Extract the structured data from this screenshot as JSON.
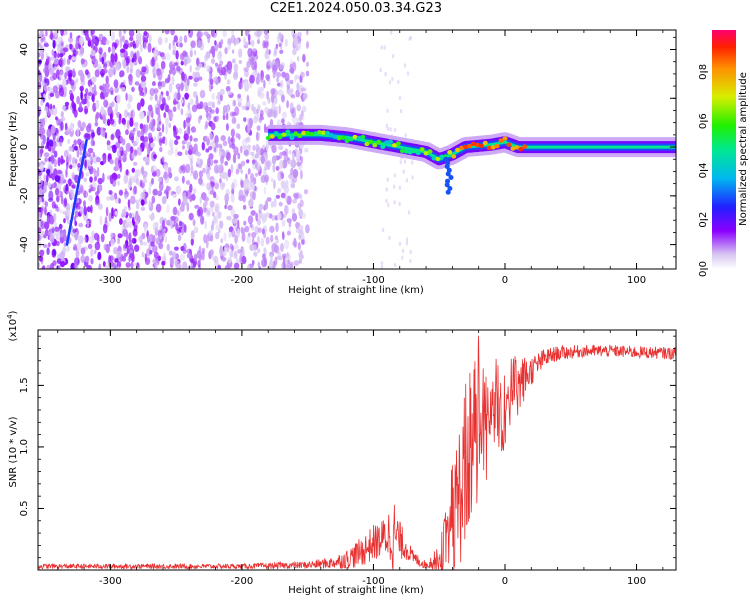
{
  "title": "C2E1.2024.050.03.34.G23",
  "chart_data": [
    {
      "type": "heatmap",
      "xlabel": "Height of straight line (km)",
      "ylabel": "Frequency (Hz)",
      "xlim": [
        -355,
        130
      ],
      "ylim": [
        -50,
        48
      ],
      "x_ticks": [
        -300,
        -200,
        -100,
        0,
        100
      ],
      "y_ticks": [
        -40,
        -20,
        0,
        20,
        40
      ],
      "colorbar": {
        "label": "Normalized spectral amplitude",
        "range": [
          0,
          0.97
        ],
        "ticks": [
          0.0,
          0.2,
          0.4,
          0.6,
          0.8
        ],
        "tick_labels": [
          "0.0",
          "0.2",
          "0.4",
          "0.6",
          "0.8"
        ]
      },
      "features": [
        {
          "name": "scattered noise",
          "x_range": [
            -355,
            -150
          ],
          "amplitude": 0.1
        },
        {
          "name": "carrier line",
          "x_range": [
            -180,
            130
          ],
          "frequency": [
            [
              -180,
              5
            ],
            [
              -140,
              5
            ],
            [
              -120,
              4
            ],
            [
              -100,
              2
            ],
            [
              -80,
              0
            ],
            [
              -60,
              -2
            ],
            [
              -50,
              -5
            ],
            [
              -40,
              -3
            ],
            [
              -30,
              0
            ],
            [
              -10,
              1
            ],
            [
              0,
              2
            ],
            [
              10,
              0
            ],
            [
              130,
              0
            ]
          ],
          "amplitude": 0.9
        },
        {
          "name": "diagonal streak",
          "x_range": [
            -330,
            -320
          ],
          "frequency": [
            [
              -333,
              -40
            ],
            [
              -318,
              3
            ]
          ],
          "amplitude": 0.3
        }
      ]
    },
    {
      "type": "line",
      "xlabel": "Height of straight line (km)",
      "ylabel": "SNR (10 * v/v)",
      "y_multiplier": "(x10^4)",
      "xlim": [
        -355,
        130
      ],
      "ylim": [
        0,
        1.95
      ],
      "x_ticks": [
        -300,
        -200,
        -100,
        0,
        100
      ],
      "y_ticks": [
        0.5,
        1.0,
        1.5
      ],
      "y_tick_labels": [
        "0.5",
        "1.0",
        "1.5"
      ],
      "color": "#e83030",
      "envelope": {
        "x": [
          -355,
          -300,
          -250,
          -200,
          -150,
          -130,
          -120,
          -110,
          -100,
          -95,
          -90,
          -85,
          -80,
          -75,
          -70,
          -60,
          -50,
          -45,
          -40,
          -35,
          -30,
          -25,
          -20,
          -15,
          -10,
          -5,
          0,
          10,
          20,
          30,
          40,
          60,
          80,
          100,
          130
        ],
        "base": [
          0.03,
          0.03,
          0.03,
          0.03,
          0.04,
          0.06,
          0.09,
          0.14,
          0.22,
          0.24,
          0.28,
          0.3,
          0.24,
          0.18,
          0.1,
          0.04,
          0.1,
          0.2,
          0.4,
          0.6,
          0.85,
          1.1,
          1.2,
          1.2,
          1.3,
          1.25,
          1.35,
          1.5,
          1.62,
          1.72,
          1.76,
          1.78,
          1.78,
          1.77,
          1.76
        ],
        "amp": [
          0.02,
          0.02,
          0.02,
          0.02,
          0.03,
          0.05,
          0.08,
          0.12,
          0.15,
          0.15,
          0.18,
          0.32,
          0.16,
          0.1,
          0.06,
          0.03,
          0.1,
          0.3,
          0.45,
          0.6,
          0.7,
          0.65,
          0.7,
          0.55,
          0.45,
          0.4,
          0.35,
          0.25,
          0.12,
          0.08,
          0.06,
          0.05,
          0.05,
          0.05,
          0.05
        ]
      }
    }
  ]
}
